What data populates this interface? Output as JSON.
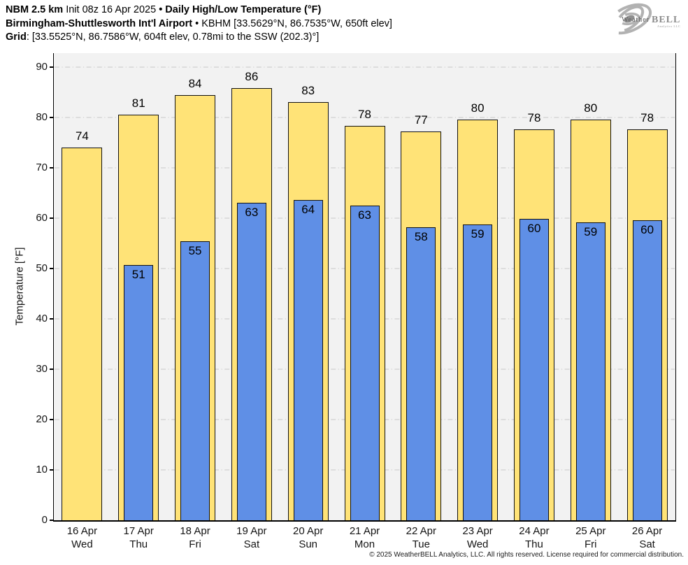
{
  "header": {
    "line1": {
      "model": "NBM 2.5 km",
      "init": "Init 08z 16 Apr 2025",
      "sep": "•",
      "product": "Daily High/Low Temperature (°F)"
    },
    "line2": {
      "station": "Birmingham-Shuttlesworth Int'l Airport",
      "sep": "•",
      "meta": "KBHM [33.5629°N, 86.7535°W, 650ft elev]"
    },
    "line3": {
      "label": "Grid",
      "value": ": [33.5525°N, 86.7586°W, 604ft elev, 0.78mi to the SSW (202.3)°]"
    }
  },
  "logo": {
    "part1": "Weather",
    "part2": "BELL",
    "subtext": "Analytics LLC"
  },
  "chart_data": {
    "type": "bar",
    "title": "Daily High/Low Temperature (°F)",
    "xlabel": "",
    "ylabel": "Temperature [°F]",
    "ylim": [
      0,
      92.8
    ],
    "yticks": [
      0,
      10,
      20,
      30,
      40,
      50,
      60,
      70,
      80,
      90
    ],
    "grid": true,
    "gridline_color": "#c8c8c8",
    "plot_background": "#f2f2f2",
    "bar_border_color": "#111111",
    "legend_position": "none",
    "categories": [
      "16 Apr",
      "17 Apr",
      "18 Apr",
      "19 Apr",
      "20 Apr",
      "21 Apr",
      "22 Apr",
      "23 Apr",
      "24 Apr",
      "25 Apr",
      "26 Apr"
    ],
    "weekdays": [
      "Wed",
      "Thu",
      "Fri",
      "Sat",
      "Sun",
      "Mon",
      "Tue",
      "Wed",
      "Thu",
      "Fri",
      "Sat"
    ],
    "series": [
      {
        "name": "High",
        "color": "#ffe377",
        "labels": [
          74,
          81,
          84,
          86,
          83,
          78,
          77,
          80,
          78,
          80,
          78
        ],
        "values": [
          74.0,
          80.6,
          84.4,
          85.8,
          83.1,
          78.4,
          77.2,
          79.6,
          77.7,
          79.6,
          77.7
        ]
      },
      {
        "name": "Low",
        "color": "#5f8fe6",
        "labels": [
          null,
          51,
          55,
          63,
          64,
          63,
          58,
          59,
          60,
          59,
          60
        ],
        "values": [
          null,
          50.7,
          55.4,
          63.1,
          63.6,
          62.5,
          58.2,
          58.7,
          59.9,
          59.1,
          59.6
        ]
      }
    ]
  },
  "footer": {
    "copyright": "© 2025 WeatherBELL Analytics, LLC. All rights reserved. License required for commercial distribution."
  }
}
